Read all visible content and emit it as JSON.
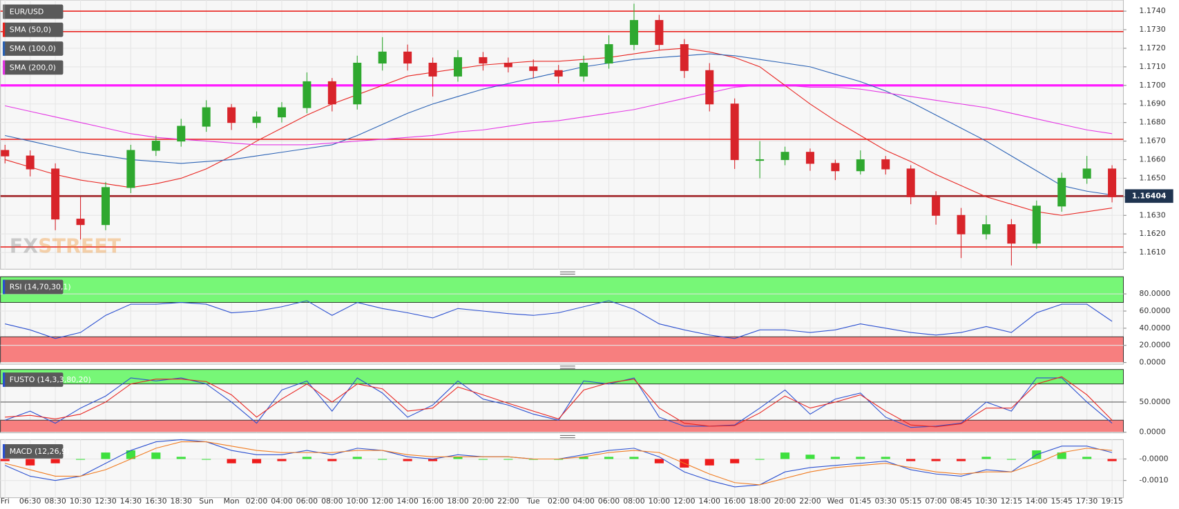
{
  "chart_data": [
    {
      "type": "candlestick",
      "name": "EUR/USD",
      "up_color": "#2fa82f",
      "down_color": "#d8242a",
      "watermark": [
        "FX",
        "STREET"
      ],
      "open": [
        1.1665,
        1.1662,
        1.1655,
        1.1628,
        1.1625,
        1.1645,
        1.1665,
        1.167,
        1.1678,
        1.1688,
        1.168,
        1.1683,
        1.1688,
        1.1702,
        1.169,
        1.1712,
        1.1718,
        1.1712,
        1.1705,
        1.1715,
        1.1712,
        1.171,
        1.1708,
        1.1705,
        1.1712,
        1.1722,
        1.1735,
        1.1722,
        1.1708,
        1.169,
        1.166,
        1.166,
        1.1664,
        1.1658,
        1.1654,
        1.166,
        1.1655,
        1.164,
        1.163,
        1.162,
        1.1625,
        1.1615,
        1.1635,
        1.165,
        1.1655
      ],
      "high": [
        1.1668,
        1.1665,
        1.1658,
        1.164,
        1.1648,
        1.1668,
        1.1673,
        1.1682,
        1.1692,
        1.169,
        1.1686,
        1.1691,
        1.1707,
        1.1704,
        1.1716,
        1.1726,
        1.1722,
        1.1715,
        1.1719,
        1.1718,
        1.1715,
        1.1714,
        1.1711,
        1.1716,
        1.1727,
        1.1744,
        1.1738,
        1.1725,
        1.1712,
        1.1693,
        1.167,
        1.1667,
        1.1666,
        1.166,
        1.1665,
        1.1662,
        1.1657,
        1.1643,
        1.1634,
        1.163,
        1.1628,
        1.1638,
        1.1653,
        1.1662,
        1.1657
      ],
      "low": [
        1.1658,
        1.1651,
        1.1622,
        1.1617,
        1.1622,
        1.1642,
        1.1662,
        1.1667,
        1.1675,
        1.1676,
        1.1677,
        1.168,
        1.1685,
        1.1686,
        1.1687,
        1.1708,
        1.1708,
        1.1694,
        1.1702,
        1.1708,
        1.1707,
        1.1704,
        1.1701,
        1.1702,
        1.1709,
        1.1719,
        1.1719,
        1.1704,
        1.1686,
        1.1655,
        1.165,
        1.1657,
        1.1654,
        1.1649,
        1.1652,
        1.1652,
        1.1636,
        1.1625,
        1.1607,
        1.1617,
        1.1603,
        1.1612,
        1.1632,
        1.1647,
        1.1637
      ],
      "close": [
        1.1662,
        1.1655,
        1.1628,
        1.1625,
        1.1645,
        1.1665,
        1.167,
        1.1678,
        1.1688,
        1.168,
        1.1683,
        1.1688,
        1.1702,
        1.169,
        1.1712,
        1.1718,
        1.1712,
        1.1705,
        1.1715,
        1.1712,
        1.171,
        1.1708,
        1.1705,
        1.1712,
        1.1722,
        1.1735,
        1.1722,
        1.1708,
        1.169,
        1.166,
        1.166,
        1.1664,
        1.1658,
        1.1654,
        1.166,
        1.1655,
        1.164,
        1.163,
        1.162,
        1.1625,
        1.1615,
        1.1635,
        1.165,
        1.1655,
        1.164
      ],
      "series": [
        {
          "name": "SMA (50,0)",
          "color": "#e8231f",
          "values": [
            1.166,
            1.1656,
            1.1652,
            1.1649,
            1.1647,
            1.1645,
            1.1647,
            1.165,
            1.1655,
            1.1662,
            1.167,
            1.1677,
            1.1684,
            1.169,
            1.1695,
            1.17,
            1.1705,
            1.1707,
            1.1709,
            1.1711,
            1.1712,
            1.1713,
            1.1713,
            1.1714,
            1.1715,
            1.1717,
            1.1719,
            1.172,
            1.1718,
            1.1715,
            1.171,
            1.17,
            1.169,
            1.1681,
            1.1673,
            1.1665,
            1.1659,
            1.1652,
            1.1646,
            1.164,
            1.1636,
            1.1632,
            1.163,
            1.1632,
            1.1634
          ]
        },
        {
          "name": "SMA (100,0)",
          "color": "#2a62b5",
          "values": [
            1.1673,
            1.167,
            1.1667,
            1.1664,
            1.1662,
            1.166,
            1.1659,
            1.1658,
            1.1659,
            1.166,
            1.1662,
            1.1664,
            1.1666,
            1.1668,
            1.1673,
            1.1679,
            1.1685,
            1.169,
            1.1694,
            1.1698,
            1.1701,
            1.1704,
            1.1707,
            1.171,
            1.1712,
            1.1714,
            1.1715,
            1.1716,
            1.1717,
            1.1716,
            1.1714,
            1.1712,
            1.171,
            1.1706,
            1.1702,
            1.1697,
            1.1691,
            1.1684,
            1.1677,
            1.167,
            1.1662,
            1.1654,
            1.1646,
            1.1643,
            1.1641
          ]
        },
        {
          "name": "SMA (200,0)",
          "color": "#e433e4",
          "values": [
            1.1689,
            1.1686,
            1.1683,
            1.168,
            1.1677,
            1.1674,
            1.1672,
            1.1671,
            1.167,
            1.1669,
            1.1668,
            1.1668,
            1.1668,
            1.1669,
            1.167,
            1.1671,
            1.1672,
            1.1673,
            1.1675,
            1.1676,
            1.1678,
            1.168,
            1.1681,
            1.1683,
            1.1685,
            1.1687,
            1.169,
            1.1693,
            1.1696,
            1.1699,
            1.17,
            1.17,
            1.1699,
            1.1699,
            1.1698,
            1.1696,
            1.1694,
            1.1692,
            1.169,
            1.1688,
            1.1685,
            1.1682,
            1.1679,
            1.1676,
            1.1674
          ]
        }
      ],
      "hlines": [
        {
          "value": 1.174,
          "color": "#e8231f",
          "width": 1.5
        },
        {
          "value": 1.1729,
          "color": "#e8231f",
          "width": 1.5
        },
        {
          "value": 1.17,
          "color": "#ff1cff",
          "width": 3
        },
        {
          "value": 1.1671,
          "color": "#e8231f",
          "width": 1.5
        },
        {
          "value": 1.16404,
          "color": "#a3282c",
          "width": 2.5
        },
        {
          "value": 1.1613,
          "color": "#e8231f",
          "width": 1.5
        }
      ],
      "last_price": 1.16404,
      "ylim": [
        1.1601,
        1.1746
      ],
      "yticks": [
        {
          "value": 1.161,
          "label": "1.1610"
        },
        {
          "value": 1.162,
          "label": "1.1620"
        },
        {
          "value": 1.163,
          "label": "1.1630"
        },
        {
          "value": 1.164,
          "label": "1.1640"
        },
        {
          "value": 1.165,
          "label": "1.1650"
        },
        {
          "value": 1.166,
          "label": "1.1660"
        },
        {
          "value": 1.167,
          "label": "1.1670"
        },
        {
          "value": 1.168,
          "label": "1.1680"
        },
        {
          "value": 1.169,
          "label": "1.1690"
        },
        {
          "value": 1.17,
          "label": "1.1700"
        },
        {
          "value": 1.171,
          "label": "1.1710"
        },
        {
          "value": 1.172,
          "label": "1.1720"
        },
        {
          "value": 1.173,
          "label": "1.1730"
        },
        {
          "value": 1.174,
          "label": "1.1740"
        }
      ]
    },
    {
      "type": "line",
      "title": "RSI (14,70,30,1)",
      "series": [
        {
          "color": "#2a4fd0",
          "values": [
            45,
            38,
            28,
            35,
            55,
            68,
            68,
            70,
            68,
            58,
            60,
            65,
            72,
            55,
            70,
            63,
            58,
            52,
            63,
            60,
            57,
            55,
            58,
            65,
            72,
            62,
            45,
            38,
            32,
            28,
            38,
            38,
            35,
            38,
            45,
            40,
            35,
            32,
            35,
            42,
            35,
            58,
            68,
            68,
            48
          ]
        }
      ],
      "bands": [
        {
          "from": 70,
          "to": 100,
          "color": "#77f777"
        },
        {
          "from": 0,
          "to": 30,
          "color": "#f77f7f"
        }
      ],
      "ylim": [
        -2,
        100
      ],
      "yticks": [
        {
          "value": 0,
          "label": "0.0000"
        },
        {
          "value": 20,
          "label": "20.0000"
        },
        {
          "value": 40,
          "label": "40.0000"
        },
        {
          "value": 60,
          "label": "60.0000"
        },
        {
          "value": 80,
          "label": "80.0000"
        }
      ]
    },
    {
      "type": "line",
      "title": "FUSTO (14,3,3,80,20)",
      "series": [
        {
          "color": "#2a4fd0",
          "values": [
            20,
            35,
            15,
            40,
            60,
            90,
            85,
            90,
            80,
            50,
            15,
            70,
            85,
            35,
            90,
            65,
            25,
            45,
            85,
            55,
            45,
            30,
            20,
            85,
            80,
            90,
            25,
            10,
            10,
            12,
            40,
            70,
            30,
            55,
            65,
            25,
            8,
            10,
            15,
            50,
            35,
            90,
            90,
            50,
            15
          ]
        },
        {
          "color": "#e8231f",
          "values": [
            25,
            28,
            22,
            30,
            50,
            80,
            88,
            88,
            84,
            62,
            25,
            55,
            80,
            50,
            80,
            72,
            35,
            40,
            75,
            62,
            48,
            35,
            22,
            70,
            82,
            88,
            40,
            15,
            10,
            11,
            32,
            60,
            40,
            50,
            62,
            35,
            12,
            9,
            14,
            40,
            40,
            80,
            92,
            62,
            20
          ]
        }
      ],
      "bands": [
        {
          "from": 80,
          "to": 104,
          "color": "#77f777"
        },
        {
          "from": 0,
          "to": 20,
          "color": "#f77f7f"
        }
      ],
      "hlines": [
        {
          "value": 50,
          "color": "#333",
          "width": 0.8
        }
      ],
      "ylim": [
        -1,
        104
      ],
      "yticks": [
        {
          "value": 0,
          "label": "0.0000"
        },
        {
          "value": 50,
          "label": "50.0000"
        }
      ]
    },
    {
      "type": "bar",
      "title": "MACD (12,26,9)",
      "up_color": "#3ee03e",
      "down_color": "#ee1c1c",
      "categories": [
        "Fri",
        "06:30",
        "08:30",
        "10:30",
        "12:30",
        "14:30",
        "16:30",
        "18:30",
        "Sun",
        "Mon",
        "02:00",
        "04:00",
        "06:00",
        "08:00",
        "10:00",
        "12:00",
        "14:00",
        "16:00",
        "18:00",
        "20:00",
        "22:00",
        "Tue",
        "02:00",
        "04:00",
        "06:00",
        "08:00",
        "10:00",
        "12:00",
        "14:00",
        "16:00",
        "18:00",
        "20:00",
        "22:00",
        "Wed",
        "01:45",
        "03:30",
        "05:15",
        "07:00",
        "08:45",
        "10:30",
        "12:15",
        "14:00",
        "15:45",
        "17:30",
        "19:15"
      ],
      "values": [
        -0.0001,
        -0.0003,
        -0.0002,
        0,
        0.0003,
        0.0004,
        0.0003,
        0.0001,
        0,
        -0.0002,
        -0.0002,
        -0.0001,
        0.0001,
        -0.0001,
        0.0001,
        0,
        -0.0001,
        -0.0001,
        0.0001,
        0,
        0,
        0,
        0,
        0.0001,
        0.0001,
        0.0001,
        -0.0002,
        -0.0004,
        -0.0003,
        -0.0002,
        0,
        0.0003,
        0.0002,
        0.0001,
        0.0001,
        0.0001,
        -0.0001,
        -0.0001,
        -0.0001,
        0.0001,
        0,
        0.0004,
        0.0003,
        0.0001,
        -0.0001
      ],
      "series": [
        {
          "color": "#2a4fd0",
          "values": [
            -0.0003,
            -0.0008,
            -0.001,
            -0.0008,
            -0.0002,
            0.0004,
            0.0008,
            0.0009,
            0.0008,
            0.0004,
            0.0002,
            0.0002,
            0.0004,
            0.0002,
            0.0005,
            0.0004,
            0.0001,
            0,
            0.0002,
            0.0001,
            0.0001,
            0,
            0,
            0.0002,
            0.0004,
            0.0005,
            0.0001,
            -0.0006,
            -0.001,
            -0.0013,
            -0.0012,
            -0.0006,
            -0.0004,
            -0.0003,
            -0.0002,
            -0.0001,
            -0.0005,
            -0.0007,
            -0.0008,
            -0.0005,
            -0.0006,
            0.0002,
            0.0006,
            0.0006,
            0.0003
          ]
        },
        {
          "color": "#f07a1e",
          "values": [
            -0.0002,
            -0.0005,
            -0.0008,
            -0.0008,
            -0.0005,
            0,
            0.0005,
            0.0008,
            0.0008,
            0.0006,
            0.0004,
            0.0003,
            0.0003,
            0.0003,
            0.0004,
            0.0004,
            0.0002,
            0.0001,
            0.0001,
            0.0001,
            0.0001,
            0,
            0,
            0.0001,
            0.0003,
            0.0004,
            0.0003,
            -0.0002,
            -0.0007,
            -0.0011,
            -0.0012,
            -0.0009,
            -0.0006,
            -0.0004,
            -0.0003,
            -0.0002,
            -0.0004,
            -0.0006,
            -0.0007,
            -0.0006,
            -0.0006,
            -0.0002,
            0.0003,
            0.0005,
            0.0004
          ]
        }
      ],
      "ylim": [
        -0.0018,
        0.0009
      ],
      "yticks": [
        {
          "value": 0,
          "label": "-0.0000"
        },
        {
          "value": -0.001,
          "label": "-0.0010"
        }
      ]
    }
  ]
}
